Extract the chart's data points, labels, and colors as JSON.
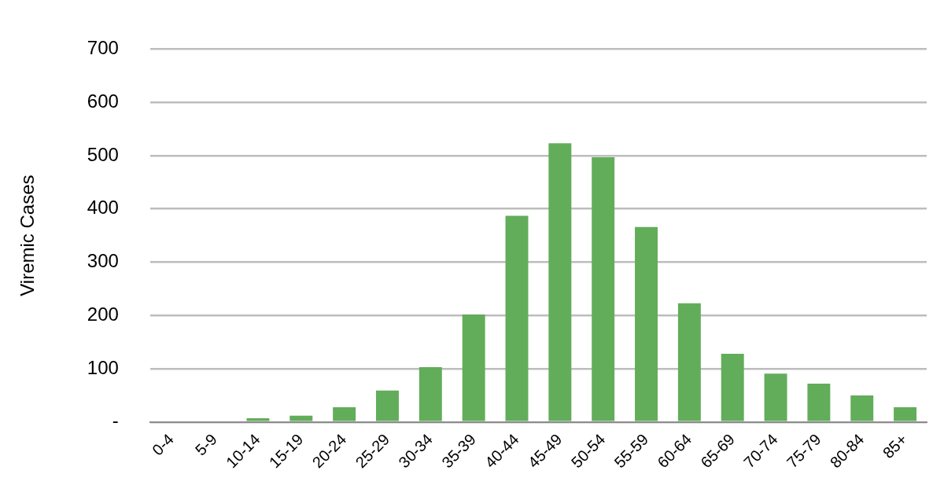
{
  "chart_data": {
    "type": "bar",
    "ylabel": "Viremic Cases",
    "categories": [
      "0-4",
      "5-9",
      "10-14",
      "15-19",
      "20-24",
      "25-29",
      "30-34",
      "35-39",
      "40-44",
      "45-49",
      "50-54",
      "55-59",
      "60-64",
      "65-69",
      "70-74",
      "75-79",
      "80-84",
      "85+"
    ],
    "values": [
      0,
      0,
      7,
      12,
      28,
      59,
      103,
      202,
      387,
      523,
      497,
      366,
      223,
      128,
      91,
      72,
      50,
      28
    ],
    "color": "#62ad5a",
    "ylim": [
      0,
      700
    ],
    "yticks": [
      {
        "value": 0,
        "label": "-"
      },
      100,
      200,
      300,
      400,
      500,
      600,
      700
    ],
    "grid": "y",
    "legend": false
  }
}
